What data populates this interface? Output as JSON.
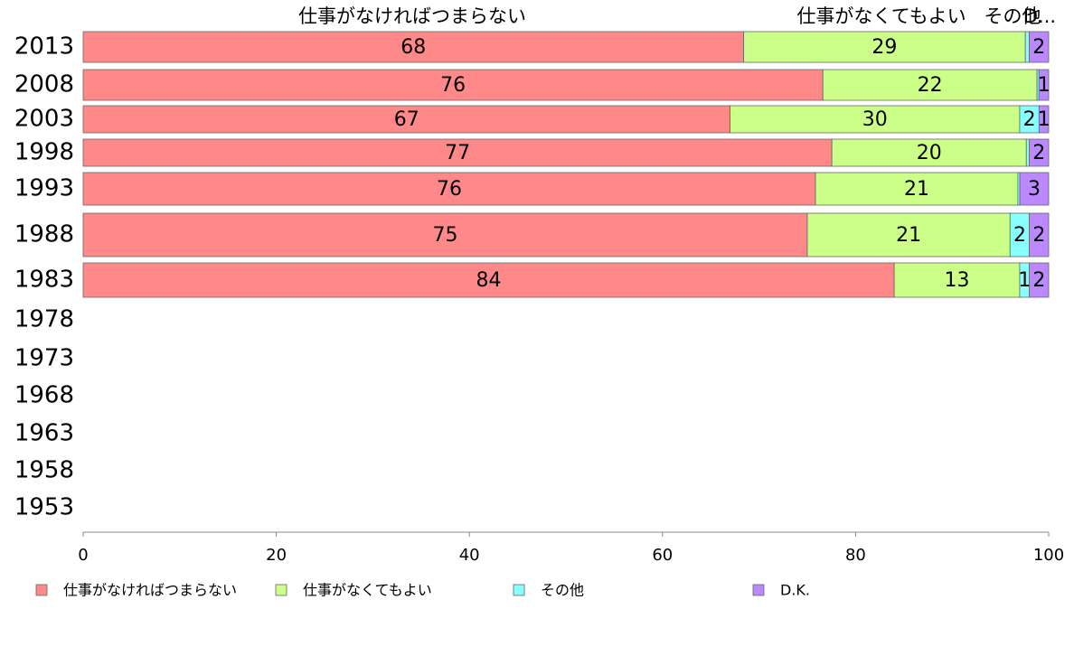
{
  "chart_data": {
    "type": "bar",
    "orientation": "horizontal",
    "stacked": true,
    "categories": [
      "2013",
      "2008",
      "2003",
      "1998",
      "1993",
      "1988",
      "1983",
      "1978",
      "1973",
      "1968",
      "1963",
      "1958",
      "1953"
    ],
    "series": [
      {
        "name": "仕事がなければつまらない",
        "color": "#ff8888",
        "values": [
          68,
          76,
          67,
          77,
          76,
          75,
          84,
          null,
          null,
          null,
          null,
          null,
          null
        ]
      },
      {
        "name": "仕事がなくてもよい",
        "color": "#ccff88",
        "values": [
          29,
          22,
          30,
          20,
          21,
          21,
          13,
          null,
          null,
          null,
          null,
          null,
          null
        ]
      },
      {
        "name": "その他",
        "color": "#88ffff",
        "values": [
          0.4,
          0.2,
          2,
          0.3,
          0.2,
          2,
          1,
          null,
          null,
          null,
          null,
          null,
          null
        ]
      },
      {
        "name": "D.K.",
        "color": "#bb88ff",
        "values": [
          2,
          1,
          1,
          2,
          3,
          2,
          2,
          null,
          null,
          null,
          null,
          null,
          null
        ]
      }
    ],
    "segment_labels": [
      [
        "68",
        "29",
        "",
        "2"
      ],
      [
        "76",
        "22",
        "",
        "1"
      ],
      [
        "67",
        "30",
        "2",
        "1"
      ],
      [
        "77",
        "20",
        "",
        "2"
      ],
      [
        "76",
        "21",
        "",
        "3"
      ],
      [
        "75",
        "21",
        "2",
        "2"
      ],
      [
        "84",
        "13",
        "1",
        "2"
      ]
    ],
    "header_labels": [
      "仕事がなければつまらない",
      "仕事がなくてもよい",
      "その他",
      "D..."
    ],
    "x_ticks": [
      "0",
      "20",
      "40",
      "60",
      "80",
      "100"
    ],
    "xlim": [
      0,
      100
    ],
    "grid": false,
    "legend_position": "bottom"
  }
}
